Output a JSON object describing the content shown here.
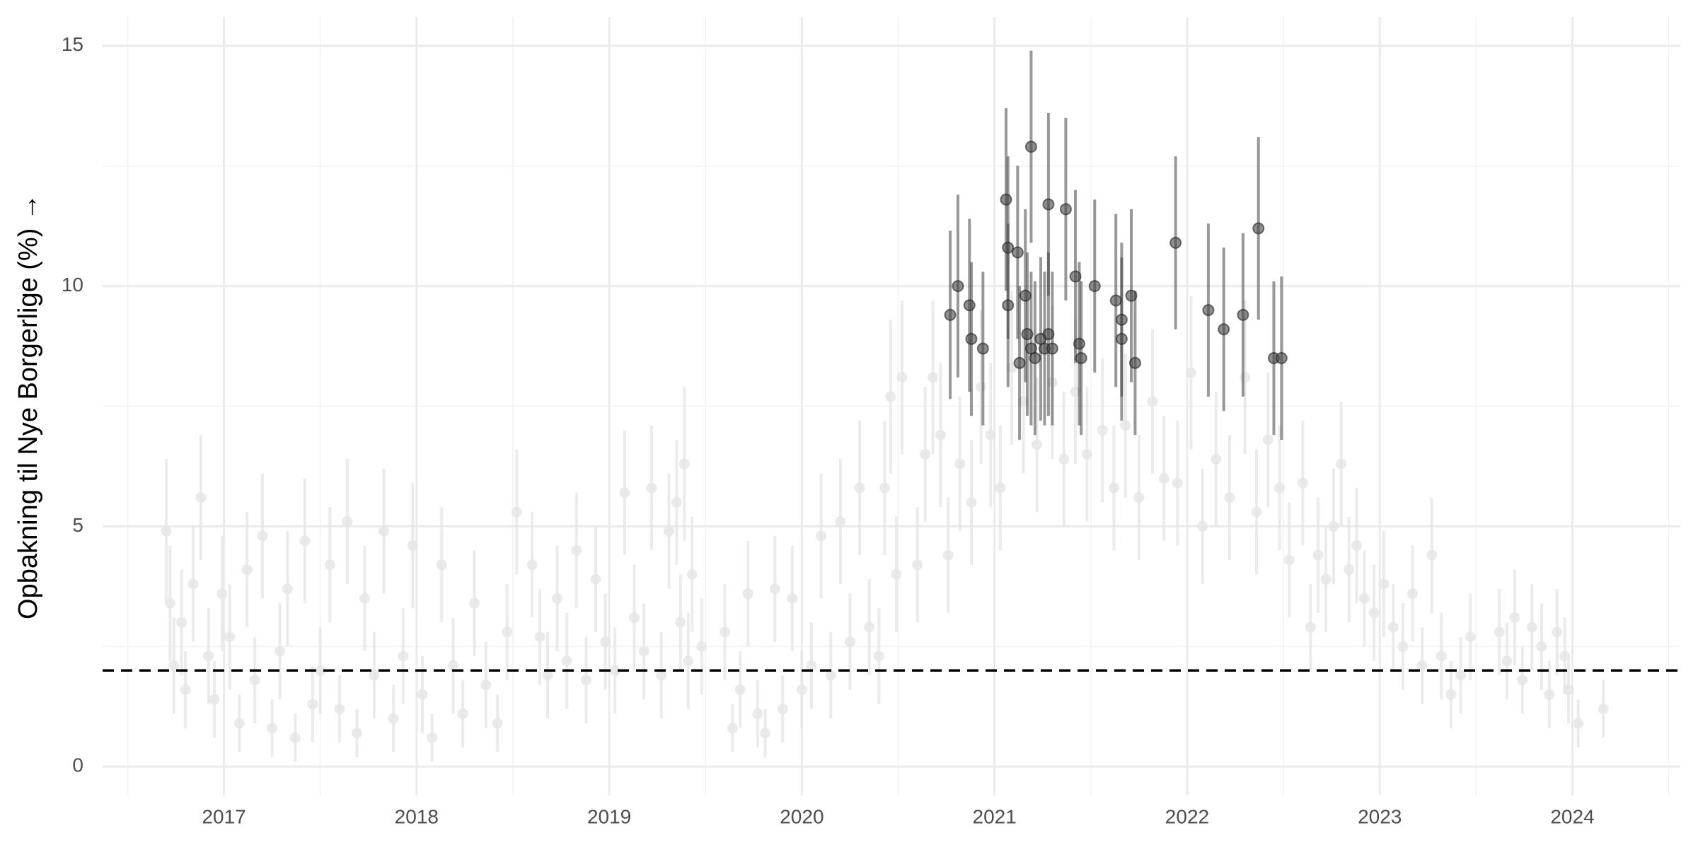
{
  "chart_data": {
    "type": "scatter",
    "y_label": "Opbakning til Nye Borgerlige (%) →",
    "xlim": [
      2016.37,
      2024.56
    ],
    "xticks": [
      2017,
      2018,
      2019,
      2020,
      2021,
      2022,
      2023,
      2024
    ],
    "ylim": [
      -0.6,
      15.6
    ],
    "yticks": [
      0,
      5,
      10,
      15
    ],
    "grid": true,
    "minor_grid": true,
    "reference_line": {
      "value": 2,
      "style": "dashed",
      "color": "#000000"
    },
    "series": [
      {
        "color": "#e6e6e6",
        "x": [
          2016.7,
          2016.72,
          2016.74,
          2016.78,
          2016.8,
          2016.84,
          2016.88,
          2016.92,
          2016.95,
          2016.99,
          2017.03,
          2017.08,
          2017.12,
          2017.16,
          2017.2,
          2017.25,
          2017.29,
          2017.33,
          2017.37,
          2017.42,
          2017.46,
          2017.5,
          2017.55,
          2017.6,
          2017.64,
          2017.69,
          2017.73,
          2017.78,
          2017.83,
          2017.88,
          2017.93,
          2017.98,
          2018.03,
          2018.08,
          2018.13,
          2018.19,
          2018.24,
          2018.3,
          2018.36,
          2018.42,
          2018.47,
          2018.52,
          2018.6,
          2018.64,
          2018.68,
          2018.73,
          2018.78,
          2018.83,
          2018.88,
          2018.93,
          2018.98,
          2019.03,
          2019.08,
          2019.13,
          2019.18,
          2019.22,
          2019.27,
          2019.31,
          2019.35,
          2019.37,
          2019.39,
          2019.41,
          2019.43,
          2019.48,
          2019.6,
          2019.64,
          2019.68,
          2019.72,
          2019.77,
          2019.81,
          2019.86,
          2019.9,
          2019.95,
          2020.0,
          2020.05,
          2020.1,
          2020.15,
          2020.2,
          2020.25,
          2020.3,
          2020.35,
          2020.4,
          2020.43,
          2020.46,
          2020.49,
          2020.52,
          2020.6,
          2020.64,
          2020.68,
          2020.72,
          2020.76,
          2020.82,
          2020.88,
          2020.93,
          2020.98,
          2021.03,
          2021.09,
          2021.15,
          2021.22,
          2021.3,
          2021.36,
          2021.42,
          2021.48,
          2021.56,
          2021.62,
          2021.68,
          2021.75,
          2021.82,
          2021.88,
          2021.95,
          2022.02,
          2022.08,
          2022.15,
          2022.22,
          2022.3,
          2022.36,
          2022.42,
          2022.48,
          2022.53,
          2022.6,
          2022.64,
          2022.68,
          2022.72,
          2022.76,
          2022.8,
          2022.84,
          2022.88,
          2022.92,
          2022.97,
          2023.02,
          2023.07,
          2023.12,
          2023.17,
          2023.22,
          2023.27,
          2023.32,
          2023.37,
          2023.42,
          2023.47,
          2023.62,
          2023.66,
          2023.7,
          2023.74,
          2023.79,
          2023.84,
          2023.88,
          2023.92,
          2023.96,
          2023.98,
          2024.03,
          2024.16
        ],
        "values": [
          4.9,
          3.4,
          2.1,
          3.0,
          1.6,
          3.8,
          5.6,
          2.3,
          1.4,
          3.6,
          2.7,
          0.9,
          4.1,
          1.8,
          4.8,
          0.8,
          2.4,
          3.7,
          0.6,
          4.7,
          1.3,
          2.0,
          4.2,
          1.2,
          5.1,
          0.7,
          3.5,
          1.9,
          4.9,
          1.0,
          2.3,
          4.6,
          1.5,
          0.6,
          4.2,
          2.1,
          1.1,
          3.4,
          1.7,
          0.9,
          2.8,
          5.3,
          4.2,
          2.7,
          1.9,
          3.5,
          2.2,
          4.5,
          1.8,
          3.9,
          2.6,
          2.0,
          5.7,
          3.1,
          2.4,
          5.8,
          1.9,
          4.9,
          5.5,
          3.0,
          6.3,
          2.2,
          4.0,
          2.5,
          2.8,
          0.8,
          1.6,
          3.6,
          1.1,
          0.7,
          3.7,
          1.2,
          3.5,
          1.6,
          2.1,
          4.8,
          1.9,
          5.1,
          2.6,
          5.8,
          2.9,
          2.3,
          5.8,
          7.7,
          4.0,
          8.1,
          4.2,
          6.5,
          8.1,
          6.9,
          4.4,
          6.3,
          5.5,
          7.9,
          6.9,
          5.8,
          8.3,
          7.6,
          6.7,
          8.0,
          6.4,
          7.8,
          6.5,
          7.0,
          5.8,
          7.1,
          5.6,
          7.6,
          6.0,
          5.9,
          8.2,
          5.0,
          6.4,
          5.6,
          8.1,
          5.3,
          6.8,
          5.8,
          4.3,
          5.9,
          2.9,
          4.4,
          3.9,
          5.0,
          6.3,
          4.1,
          4.6,
          3.5,
          3.2,
          3.8,
          2.9,
          2.5,
          3.6,
          2.1,
          4.4,
          2.3,
          1.5,
          1.9,
          2.7,
          2.8,
          2.2,
          3.1,
          1.8,
          2.9,
          2.5,
          1.5,
          2.8,
          2.3,
          1.6,
          0.9,
          1.2
        ],
        "errors": [
          1.5,
          1.2,
          1.0,
          1.1,
          0.8,
          1.2,
          1.3,
          1.0,
          0.8,
          1.2,
          1.1,
          0.6,
          1.2,
          0.9,
          1.3,
          0.6,
          1.0,
          1.2,
          0.5,
          1.3,
          0.8,
          0.9,
          1.2,
          0.7,
          1.3,
          0.5,
          1.1,
          0.9,
          1.3,
          0.7,
          1.0,
          1.3,
          0.8,
          0.5,
          1.2,
          1.0,
          0.7,
          1.1,
          0.9,
          0.6,
          1.0,
          1.3,
          1.1,
          1.0,
          0.9,
          1.1,
          1.0,
          1.2,
          0.9,
          1.1,
          1.0,
          0.9,
          1.3,
          1.1,
          1.0,
          1.3,
          0.9,
          1.2,
          1.3,
          1.0,
          1.6,
          1.0,
          1.2,
          1.0,
          1.0,
          0.5,
          0.8,
          1.1,
          0.7,
          0.5,
          1.1,
          0.7,
          1.1,
          0.8,
          0.9,
          1.3,
          0.9,
          1.3,
          1.0,
          1.4,
          1.0,
          1.0,
          1.4,
          1.6,
          1.2,
          1.6,
          1.2,
          1.4,
          1.6,
          1.5,
          1.2,
          1.4,
          1.3,
          1.6,
          1.5,
          1.3,
          1.6,
          1.5,
          1.4,
          1.6,
          1.4,
          1.5,
          1.4,
          1.5,
          1.3,
          1.5,
          1.3,
          1.5,
          1.3,
          1.3,
          1.6,
          1.2,
          1.4,
          1.3,
          1.6,
          1.3,
          1.4,
          1.3,
          1.2,
          1.3,
          0.9,
          1.2,
          1.1,
          1.2,
          1.3,
          1.1,
          1.2,
          1.0,
          1.0,
          1.1,
          0.9,
          0.9,
          1.0,
          0.8,
          1.2,
          0.9,
          0.7,
          0.8,
          0.9,
          0.9,
          0.8,
          1.0,
          0.7,
          0.9,
          0.9,
          0.7,
          0.9,
          0.8,
          0.7,
          0.5,
          0.6
        ]
      },
      {
        "color": "#444444",
        "x": [
          2020.77,
          2020.81,
          2020.87,
          2020.88,
          2020.94,
          2021.06,
          2021.07,
          2021.07,
          2021.12,
          2021.13,
          2021.16,
          2021.17,
          2021.19,
          2021.19,
          2021.21,
          2021.24,
          2021.26,
          2021.28,
          2021.28,
          2021.3,
          2021.37,
          2021.42,
          2021.44,
          2021.45,
          2021.52,
          2021.63,
          2021.66,
          2021.66,
          2021.71,
          2021.73,
          2021.94,
          2022.11,
          2022.19,
          2022.29,
          2022.37,
          2022.45,
          2022.49
        ],
        "values": [
          9.4,
          10.0,
          9.6,
          8.9,
          8.7,
          11.8,
          10.8,
          9.6,
          10.7,
          8.4,
          9.8,
          9.0,
          12.9,
          8.7,
          8.5,
          8.9,
          8.7,
          9.0,
          11.7,
          8.7,
          11.6,
          10.2,
          8.8,
          8.5,
          10.0,
          9.7,
          9.3,
          8.9,
          9.8,
          8.4,
          10.9,
          9.5,
          9.1,
          9.4,
          11.2,
          8.5,
          8.5
        ],
        "errors": [
          1.75,
          1.9,
          1.8,
          1.6,
          1.6,
          1.9,
          1.9,
          1.7,
          1.8,
          1.6,
          1.8,
          1.7,
          2.0,
          1.6,
          1.6,
          1.7,
          1.6,
          1.7,
          1.9,
          1.6,
          1.9,
          1.8,
          1.7,
          1.6,
          1.8,
          1.8,
          1.6,
          1.7,
          1.8,
          1.5,
          1.8,
          1.8,
          1.7,
          1.7,
          1.9,
          1.6,
          1.7
        ]
      }
    ]
  }
}
